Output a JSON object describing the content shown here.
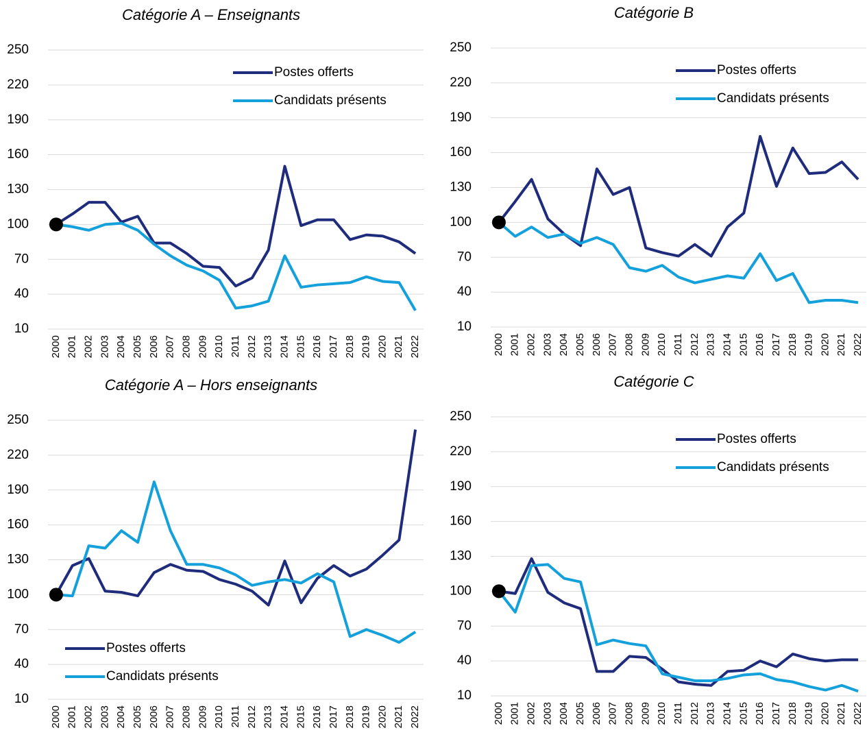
{
  "chart_data": [
    {
      "type": "line",
      "title": "Catégorie A – Enseignants",
      "legend": "upper right",
      "categories": [
        "2000",
        "2001",
        "2002",
        "2003",
        "2004",
        "2005",
        "2006",
        "2007",
        "2008",
        "2009",
        "2010",
        "2011",
        "2012",
        "2013",
        "2014",
        "2015",
        "2016",
        "2017",
        "2018",
        "2019",
        "2020",
        "2021",
        "2022"
      ],
      "ylim": [
        10,
        250
      ],
      "yticks": [
        10,
        40,
        70,
        100,
        130,
        160,
        190,
        220,
        250
      ],
      "grid": true,
      "series": [
        {
          "name": "Postes offerts",
          "color": "#1f2c7c",
          "values": [
            100,
            109,
            119,
            119,
            102,
            107,
            84,
            84,
            75,
            64,
            63,
            47,
            54,
            78,
            150,
            99,
            104,
            104,
            87,
            91,
            90,
            85,
            75
          ]
        },
        {
          "name": "Candidats présents",
          "color": "#14a0db",
          "values": [
            100,
            98,
            95,
            100,
            101,
            95,
            83,
            73,
            65,
            60,
            52,
            28,
            30,
            34,
            73,
            46,
            48,
            49,
            50,
            55,
            51,
            50,
            26
          ]
        }
      ]
    },
    {
      "type": "line",
      "title": "Catégorie B",
      "legend": "upper right",
      "categories": [
        "2000",
        "2001",
        "2002",
        "2003",
        "2004",
        "2005",
        "2006",
        "2007",
        "2008",
        "2009",
        "2010",
        "2011",
        "2012",
        "2013",
        "2014",
        "2015",
        "2016",
        "2017",
        "2018",
        "2019",
        "2020",
        "2021",
        "2022"
      ],
      "ylim": [
        10,
        250
      ],
      "yticks": [
        10,
        40,
        70,
        100,
        130,
        160,
        190,
        220,
        250
      ],
      "grid": true,
      "series": [
        {
          "name": "Postes offerts",
          "color": "#1f2c7c",
          "values": [
            100,
            118,
            137,
            103,
            90,
            80,
            146,
            124,
            130,
            78,
            74,
            71,
            81,
            71,
            96,
            108,
            174,
            131,
            164,
            142,
            143,
            152,
            137
          ]
        },
        {
          "name": "Candidats présents",
          "color": "#14a0db",
          "values": [
            100,
            88,
            96,
            87,
            90,
            82,
            87,
            81,
            61,
            58,
            63,
            53,
            48,
            51,
            54,
            52,
            73,
            50,
            56,
            31,
            33,
            33,
            31
          ]
        }
      ]
    },
    {
      "type": "line",
      "title": "Catégorie A – Hors enseignants",
      "legend": "lower left",
      "categories": [
        "2000",
        "2001",
        "2002",
        "2003",
        "2004",
        "2005",
        "2006",
        "2007",
        "2008",
        "2009",
        "2010",
        "2011",
        "2012",
        "2013",
        "2014",
        "2015",
        "2016",
        "2017",
        "2018",
        "2019",
        "2020",
        "2021",
        "2022"
      ],
      "ylim": [
        10,
        250
      ],
      "yticks": [
        10,
        40,
        70,
        100,
        130,
        160,
        190,
        220,
        250
      ],
      "grid": true,
      "series": [
        {
          "name": "Postes offerts",
          "color": "#1f2c7c",
          "values": [
            100,
            125,
            131,
            103,
            102,
            99,
            119,
            126,
            121,
            120,
            113,
            109,
            103,
            91,
            129,
            93,
            114,
            125,
            116,
            122,
            134,
            147,
            242
          ]
        },
        {
          "name": "Candidats présents",
          "color": "#14a0db",
          "values": [
            100,
            99,
            142,
            140,
            155,
            145,
            197,
            155,
            126,
            126,
            123,
            117,
            108,
            111,
            113,
            110,
            118,
            111,
            64,
            70,
            65,
            59,
            68
          ]
        }
      ]
    },
    {
      "type": "line",
      "title": "Catégorie C",
      "legend": "upper right",
      "categories": [
        "2000",
        "2001",
        "2002",
        "2003",
        "2004",
        "2005",
        "2006",
        "2007",
        "2008",
        "2009",
        "2010",
        "2011",
        "2012",
        "2013",
        "2014",
        "2015",
        "2016",
        "2017",
        "2018",
        "2019",
        "2020",
        "2021",
        "2022"
      ],
      "ylim": [
        10,
        250
      ],
      "yticks": [
        10,
        40,
        70,
        100,
        130,
        160,
        190,
        220,
        250
      ],
      "grid": true,
      "series": [
        {
          "name": "Postes offerts",
          "color": "#1f2c7c",
          "values": [
            100,
            98,
            128,
            99,
            90,
            85,
            31,
            31,
            44,
            43,
            33,
            22,
            20,
            19,
            31,
            32,
            40,
            35,
            46,
            42,
            40,
            41,
            41
          ]
        },
        {
          "name": "Candidats présents",
          "color": "#14a0db",
          "values": [
            100,
            82,
            122,
            123,
            111,
            108,
            54,
            58,
            55,
            53,
            29,
            26,
            23,
            23,
            25,
            28,
            29,
            24,
            22,
            18,
            15,
            19,
            14
          ]
        }
      ]
    }
  ]
}
